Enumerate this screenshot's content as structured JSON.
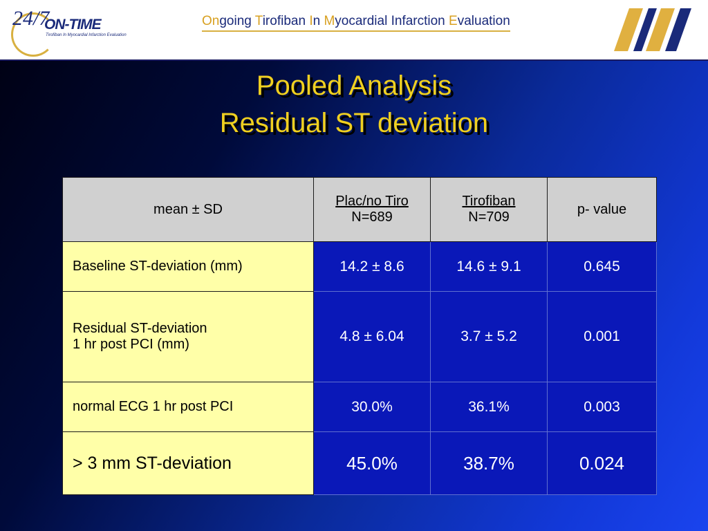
{
  "header": {
    "logo_number": "24/7",
    "logo_name": "ON-TIME",
    "logo_subtitle": "Tirofiban In Myocardial Infarction Evaluation",
    "tagline": {
      "parts": [
        "On",
        "going ",
        "T",
        "irofiban ",
        "I",
        "n ",
        "M",
        "yocardial Infarction ",
        "E",
        "valuation"
      ]
    }
  },
  "title_line1": "Pooled Analysis",
  "title_line2": "Residual ST deviation",
  "table": {
    "headers": {
      "col0": "mean ± SD",
      "col1_line1": "Plac/no Tiro",
      "col1_line2": "N=689",
      "col2_line1": "Tirofiban",
      "col2_line2": "N=709",
      "col3": "p- value"
    },
    "rows": [
      {
        "label_line1": "Baseline ST-deviation (mm)",
        "label_line2": "",
        "plac": "14.2 ± 8.6",
        "tiro": "14.6 ± 9.1",
        "p": "0.645"
      },
      {
        "label_line1": "Residual ST-deviation",
        "label_line2": "1 hr post PCI (mm)",
        "plac": "4.8 ± 6.04",
        "tiro": "3.7 ± 5.2",
        "p": "0.001"
      },
      {
        "label_line1": "normal ECG 1 hr post PCI",
        "label_line2": "",
        "plac": "30.0%",
        "tiro": "36.1%",
        "p": "0.003"
      },
      {
        "label_line1": "> 3 mm ST-deviation",
        "label_line2": "",
        "plac": "45.0%",
        "tiro": "38.7%",
        "p": "0.024"
      }
    ]
  },
  "colors": {
    "title": "#f0d020",
    "label_cell": "#ffffa8",
    "value_cell": "#0a18b8",
    "header_cell": "#d0d0d0"
  }
}
